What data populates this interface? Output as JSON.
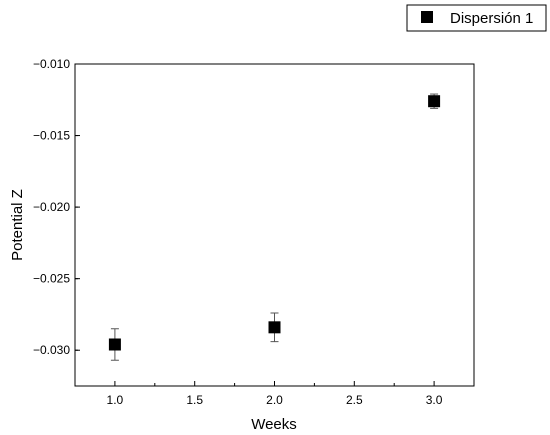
{
  "chart_data": {
    "type": "scatter",
    "title": "",
    "xlabel": "Weeks",
    "ylabel": "Potential Z",
    "xlim": [
      0.75,
      3.25
    ],
    "ylim": [
      -0.0325,
      -0.01
    ],
    "x_ticks": [
      1.0,
      1.5,
      2.0,
      2.5,
      3.0
    ],
    "x_tick_labels": [
      "1.0",
      "1.5",
      "2.0",
      "2.5",
      "3.0"
    ],
    "y_ticks": [
      -0.01,
      -0.015,
      -0.02,
      -0.025,
      -0.03
    ],
    "y_tick_labels": [
      "−0.010",
      "−0.015",
      "−0.020",
      "−0.025",
      "−0.030"
    ],
    "grid": false,
    "legend_position": "top-right",
    "series": [
      {
        "name": "Dispersión 1",
        "marker": "square",
        "color": "#000000",
        "points": [
          {
            "x": 1.0,
            "y": -0.0296,
            "err": 0.0011
          },
          {
            "x": 2.0,
            "y": -0.0284,
            "err": 0.001
          },
          {
            "x": 3.0,
            "y": -0.0126,
            "err": 0.0005
          }
        ]
      }
    ]
  }
}
